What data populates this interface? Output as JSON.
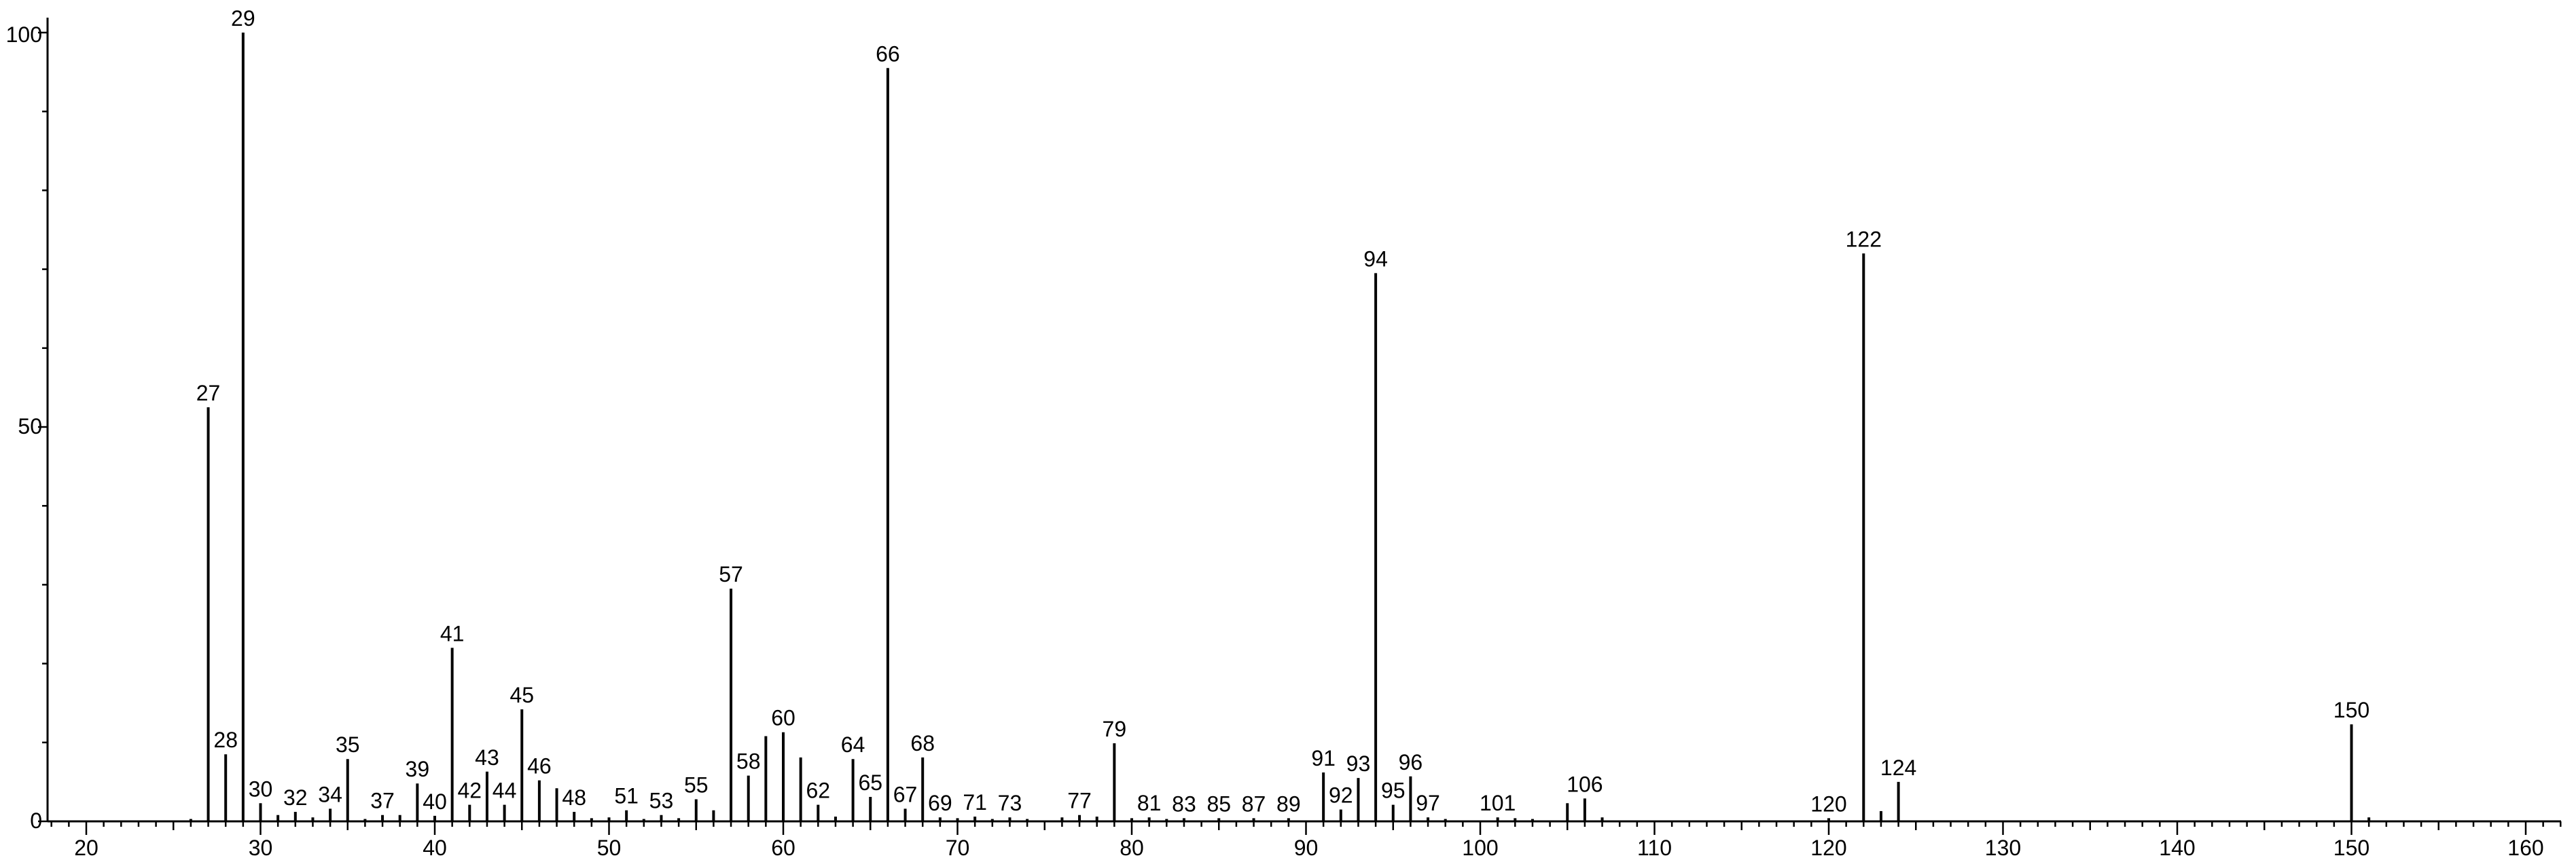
{
  "chart_data": {
    "type": "bar",
    "title": "",
    "xlabel": "",
    "ylabel": "",
    "xlim": [
      18,
      162
    ],
    "ylim": [
      0,
      100
    ],
    "x_ticks": [
      20,
      30,
      40,
      50,
      60,
      70,
      80,
      90,
      100,
      110,
      120,
      130,
      140,
      150,
      160
    ],
    "x_tick_labels": [
      "20",
      "30",
      "40",
      "50",
      "60",
      "70",
      "80",
      "90",
      "100",
      "110",
      "120",
      "130",
      "140",
      "150",
      "160"
    ],
    "y_ticks": [
      0,
      50,
      100
    ],
    "y_tick_labels": [
      "0",
      "50",
      "100"
    ],
    "grid": false,
    "legend": "none",
    "colors": {
      "bar": "#000000",
      "axis": "#000000",
      "text": "#000000"
    },
    "peaks": [
      {
        "mz": 26,
        "intensity": 0.3,
        "label": ""
      },
      {
        "mz": 27,
        "intensity": 52.5,
        "label": "27"
      },
      {
        "mz": 28,
        "intensity": 8.5,
        "label": "28"
      },
      {
        "mz": 29,
        "intensity": 100,
        "label": "29"
      },
      {
        "mz": 30,
        "intensity": 2.3,
        "label": "30"
      },
      {
        "mz": 31,
        "intensity": 0.8,
        "label": ""
      },
      {
        "mz": 32,
        "intensity": 1.2,
        "label": "32"
      },
      {
        "mz": 33,
        "intensity": 0.5,
        "label": ""
      },
      {
        "mz": 34,
        "intensity": 1.6,
        "label": "34"
      },
      {
        "mz": 35,
        "intensity": 7.9,
        "label": "35"
      },
      {
        "mz": 36,
        "intensity": 0.3,
        "label": ""
      },
      {
        "mz": 37,
        "intensity": 0.8,
        "label": "37"
      },
      {
        "mz": 38,
        "intensity": 0.8,
        "label": ""
      },
      {
        "mz": 39,
        "intensity": 4.8,
        "label": "39"
      },
      {
        "mz": 40,
        "intensity": 0.7,
        "label": "40"
      },
      {
        "mz": 41,
        "intensity": 22,
        "label": "41"
      },
      {
        "mz": 42,
        "intensity": 2.1,
        "label": "42"
      },
      {
        "mz": 43,
        "intensity": 6.3,
        "label": "43"
      },
      {
        "mz": 44,
        "intensity": 2.1,
        "label": "44"
      },
      {
        "mz": 45,
        "intensity": 14.2,
        "label": "45"
      },
      {
        "mz": 46,
        "intensity": 5.2,
        "label": "46"
      },
      {
        "mz": 47,
        "intensity": 4.2,
        "label": ""
      },
      {
        "mz": 48,
        "intensity": 1.2,
        "label": "48"
      },
      {
        "mz": 49,
        "intensity": 0.4,
        "label": ""
      },
      {
        "mz": 50,
        "intensity": 0.5,
        "label": ""
      },
      {
        "mz": 51,
        "intensity": 1.4,
        "label": "51"
      },
      {
        "mz": 52,
        "intensity": 0.3,
        "label": ""
      },
      {
        "mz": 53,
        "intensity": 0.8,
        "label": "53"
      },
      {
        "mz": 54,
        "intensity": 0.4,
        "label": ""
      },
      {
        "mz": 55,
        "intensity": 2.8,
        "label": "55"
      },
      {
        "mz": 56,
        "intensity": 1.4,
        "label": ""
      },
      {
        "mz": 57,
        "intensity": 29.5,
        "label": "57"
      },
      {
        "mz": 58,
        "intensity": 5.8,
        "label": "58"
      },
      {
        "mz": 59,
        "intensity": 10.8,
        "label": ""
      },
      {
        "mz": 60,
        "intensity": 11.3,
        "label": "60"
      },
      {
        "mz": 61,
        "intensity": 8.1,
        "label": ""
      },
      {
        "mz": 62,
        "intensity": 2.1,
        "label": "62"
      },
      {
        "mz": 63,
        "intensity": 0.6,
        "label": ""
      },
      {
        "mz": 64,
        "intensity": 7.9,
        "label": "64"
      },
      {
        "mz": 65,
        "intensity": 3.1,
        "label": "65"
      },
      {
        "mz": 66,
        "intensity": 95.5,
        "label": "66"
      },
      {
        "mz": 67,
        "intensity": 1.6,
        "label": "67"
      },
      {
        "mz": 68,
        "intensity": 8.1,
        "label": "68"
      },
      {
        "mz": 69,
        "intensity": 0.5,
        "label": "69"
      },
      {
        "mz": 70,
        "intensity": 0.4,
        "label": ""
      },
      {
        "mz": 71,
        "intensity": 0.6,
        "label": "71"
      },
      {
        "mz": 72,
        "intensity": 0.3,
        "label": ""
      },
      {
        "mz": 73,
        "intensity": 0.5,
        "label": "73"
      },
      {
        "mz": 74,
        "intensity": 0.3,
        "label": ""
      },
      {
        "mz": 76,
        "intensity": 0.5,
        "label": ""
      },
      {
        "mz": 77,
        "intensity": 0.8,
        "label": "77"
      },
      {
        "mz": 78,
        "intensity": 0.6,
        "label": ""
      },
      {
        "mz": 79,
        "intensity": 9.9,
        "label": "79"
      },
      {
        "mz": 80,
        "intensity": 0.4,
        "label": ""
      },
      {
        "mz": 81,
        "intensity": 0.5,
        "label": "81"
      },
      {
        "mz": 82,
        "intensity": 0.3,
        "label": ""
      },
      {
        "mz": 83,
        "intensity": 0.4,
        "label": "83"
      },
      {
        "mz": 85,
        "intensity": 0.4,
        "label": "85"
      },
      {
        "mz": 87,
        "intensity": 0.4,
        "label": "87"
      },
      {
        "mz": 89,
        "intensity": 0.4,
        "label": "89"
      },
      {
        "mz": 91,
        "intensity": 6.2,
        "label": "91"
      },
      {
        "mz": 92,
        "intensity": 1.5,
        "label": "92"
      },
      {
        "mz": 93,
        "intensity": 5.5,
        "label": "93"
      },
      {
        "mz": 94,
        "intensity": 69.5,
        "label": "94"
      },
      {
        "mz": 95,
        "intensity": 2.1,
        "label": "95"
      },
      {
        "mz": 96,
        "intensity": 5.7,
        "label": "96"
      },
      {
        "mz": 97,
        "intensity": 0.5,
        "label": "97"
      },
      {
        "mz": 98,
        "intensity": 0.3,
        "label": ""
      },
      {
        "mz": 101,
        "intensity": 0.5,
        "label": "101"
      },
      {
        "mz": 102,
        "intensity": 0.4,
        "label": ""
      },
      {
        "mz": 103,
        "intensity": 0.3,
        "label": ""
      },
      {
        "mz": 105,
        "intensity": 2.3,
        "label": ""
      },
      {
        "mz": 106,
        "intensity": 2.9,
        "label": "106"
      },
      {
        "mz": 107,
        "intensity": 0.5,
        "label": ""
      },
      {
        "mz": 120,
        "intensity": 0.4,
        "label": "120"
      },
      {
        "mz": 122,
        "intensity": 72,
        "label": "122"
      },
      {
        "mz": 123,
        "intensity": 1.3,
        "label": ""
      },
      {
        "mz": 124,
        "intensity": 5,
        "label": "124"
      },
      {
        "mz": 150,
        "intensity": 12.3,
        "label": "150"
      },
      {
        "mz": 151,
        "intensity": 0.5,
        "label": ""
      }
    ]
  }
}
